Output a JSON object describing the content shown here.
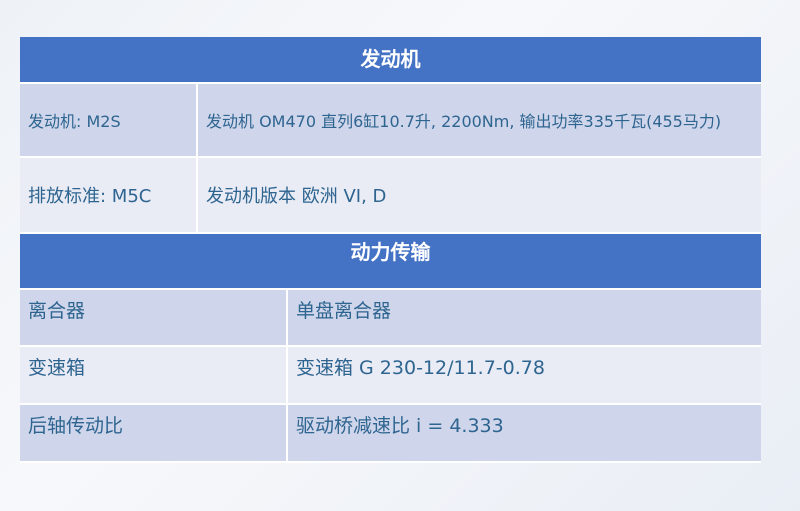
{
  "sections": [
    {
      "title": "发动机",
      "rows": [
        {
          "label": "发动机: M2S",
          "value": "发动机 OM470 直列6缸10.7升, 2200Nm, 输出功率335千瓦(455马力)"
        },
        {
          "label": "排放标准: M5C",
          "value": "发动机版本 欧洲 VI, D"
        }
      ]
    },
    {
      "title": "动力传输",
      "rows": [
        {
          "label": "离合器",
          "value": "单盘离合器"
        },
        {
          "label": "变速箱",
          "value": "变速箱 G 230-12/11.7-0.78"
        },
        {
          "label": "后轴传动比",
          "value": "驱动桥减速比 i = 4.333"
        }
      ]
    }
  ],
  "colors": {
    "header": "#4472c4",
    "row_odd": "#cfd5ea",
    "row_even": "#e9ebf5",
    "text": "#2e6590"
  }
}
